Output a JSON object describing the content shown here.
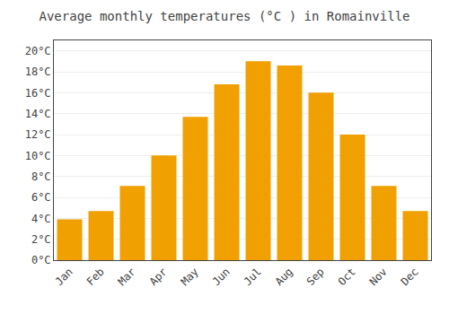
{
  "chart_data": {
    "type": "bar",
    "title": "Average monthly temperatures (°C ) in Romainville",
    "categories": [
      "Jan",
      "Feb",
      "Mar",
      "Apr",
      "May",
      "Jun",
      "Jul",
      "Aug",
      "Sep",
      "Oct",
      "Nov",
      "Dec"
    ],
    "values": [
      3.9,
      4.7,
      7.1,
      10.0,
      13.7,
      16.8,
      19.0,
      18.6,
      16.0,
      12.0,
      7.1,
      4.7
    ],
    "color": "#F0A000",
    "ylim": [
      0,
      21
    ],
    "yticks": [
      {
        "value": 0,
        "label": "0°C"
      },
      {
        "value": 2,
        "label": "2°C"
      },
      {
        "value": 4,
        "label": "4°C"
      },
      {
        "value": 6,
        "label": "6°C"
      },
      {
        "value": 8,
        "label": "8°C"
      },
      {
        "value": 10,
        "label": "10°C"
      },
      {
        "value": 12,
        "label": "12°C"
      },
      {
        "value": 14,
        "label": "14°C"
      },
      {
        "value": 16,
        "label": "16°C"
      },
      {
        "value": 18,
        "label": "18°C"
      },
      {
        "value": 20,
        "label": "20°C"
      }
    ],
    "grid": true
  }
}
